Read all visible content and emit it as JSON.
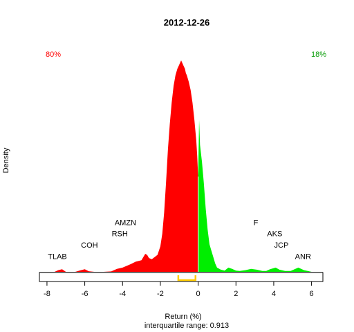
{
  "chart_data": {
    "type": "area",
    "title": "2012-12-26",
    "xlabel": "Return (%)",
    "ylabel": "Density",
    "subtitle": "interquartile range: 0.913",
    "xlim": [
      -8.4,
      6.6
    ],
    "xticks": [
      -8,
      -6,
      -4,
      -2,
      0,
      2,
      4,
      6
    ],
    "tick_labels": [
      "-8",
      "-6",
      "-4",
      "-2",
      "0",
      "2",
      "4",
      "6"
    ],
    "ylim": [
      0,
      1.05
    ],
    "split_at": 0,
    "left_percent": "80%",
    "right_percent": "18%",
    "colors": {
      "negative": "#ff0000",
      "positive": "#00ee00",
      "iqr": "#ffcc00",
      "baseline": "#bebebe"
    },
    "iqr": [
      -1.05,
      -0.14
    ],
    "density": {
      "x": [
        -7.6,
        -7.4,
        -7.2,
        -7.0,
        -6.5,
        -6.2,
        -6.0,
        -5.8,
        -5.5,
        -5.0,
        -4.6,
        -4.3,
        -4.0,
        -3.6,
        -3.3,
        -3.0,
        -2.9,
        -2.8,
        -2.7,
        -2.6,
        -2.45,
        -2.3,
        -2.15,
        -2.0,
        -1.9,
        -1.8,
        -1.7,
        -1.6,
        -1.5,
        -1.4,
        -1.3,
        -1.2,
        -1.1,
        -1.0,
        -0.9,
        -0.8,
        -0.7,
        -0.65,
        -0.6,
        -0.5,
        -0.4,
        -0.3,
        -0.2,
        -0.1,
        -0.05,
        0.0,
        0.05,
        0.1,
        0.2,
        0.3,
        0.4,
        0.5,
        0.6,
        0.7,
        0.8,
        0.9,
        1.0,
        1.2,
        1.4,
        1.6,
        1.8,
        2.0,
        2.2,
        2.5,
        2.8,
        3.1,
        3.4,
        3.6,
        3.8,
        4.1,
        4.3,
        4.6,
        4.9,
        5.1,
        5.3,
        5.6,
        5.8,
        6.0
      ],
      "y": [
        0.0,
        0.008,
        0.012,
        0.0,
        0.0,
        0.008,
        0.012,
        0.003,
        0.0,
        0.0,
        0.002,
        0.014,
        0.02,
        0.035,
        0.048,
        0.055,
        0.07,
        0.085,
        0.08,
        0.065,
        0.06,
        0.07,
        0.08,
        0.12,
        0.18,
        0.28,
        0.42,
        0.58,
        0.7,
        0.8,
        0.88,
        0.93,
        0.96,
        0.98,
        1.0,
        0.98,
        0.96,
        0.94,
        0.93,
        0.9,
        0.86,
        0.8,
        0.72,
        0.62,
        0.55,
        0.45,
        0.72,
        0.6,
        0.52,
        0.42,
        0.3,
        0.2,
        0.13,
        0.1,
        0.07,
        0.04,
        0.02,
        0.01,
        0.006,
        0.02,
        0.014,
        0.006,
        0.004,
        0.008,
        0.014,
        0.01,
        0.004,
        0.004,
        0.012,
        0.02,
        0.01,
        0.004,
        0.004,
        0.012,
        0.02,
        0.008,
        0.004,
        0.0
      ]
    },
    "annotations": [
      {
        "text": "TLAB",
        "x": -7.45,
        "y": 0.06
      },
      {
        "text": "COH",
        "x": -5.75,
        "y": 0.115
      },
      {
        "text": "RSH",
        "x": -4.15,
        "y": 0.168
      },
      {
        "text": "AMZN",
        "x": -3.85,
        "y": 0.22
      },
      {
        "text": "F",
        "x": 3.05,
        "y": 0.22
      },
      {
        "text": "AKS",
        "x": 4.05,
        "y": 0.168
      },
      {
        "text": "JCP",
        "x": 4.4,
        "y": 0.115
      },
      {
        "text": "ANR",
        "x": 5.55,
        "y": 0.06
      }
    ]
  }
}
